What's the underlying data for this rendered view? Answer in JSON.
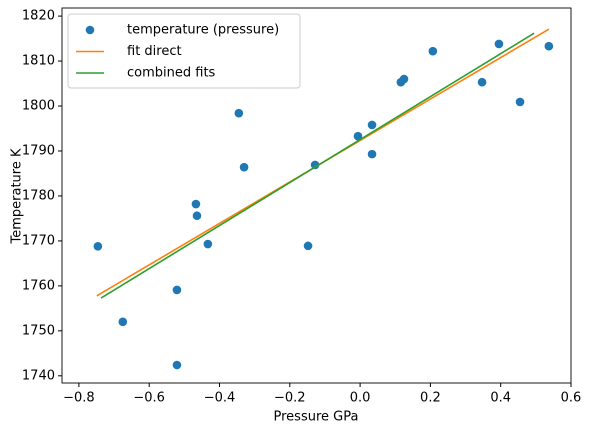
{
  "chart_data": {
    "type": "scatter",
    "xlabel": "Pressure GPa",
    "ylabel": "Temperature K",
    "xlim": [
      -0.848,
      0.6
    ],
    "ylim": [
      1738.4,
      1821.8
    ],
    "xticks": [
      {
        "value": -0.8,
        "label": "−0.8"
      },
      {
        "value": -0.6,
        "label": "−0.6"
      },
      {
        "value": -0.4,
        "label": "−0.4"
      },
      {
        "value": -0.2,
        "label": "−0.2"
      },
      {
        "value": 0,
        "label": "0.0"
      },
      0.2,
      0.4,
      0.6
    ],
    "yticks": [
      1740,
      1750,
      1760,
      1770,
      1780,
      1790,
      1800,
      1810,
      1820
    ],
    "legend": "upper left",
    "series": [
      {
        "name": "temperature (pressure)",
        "type": "scatter",
        "color": "#1f77b4",
        "x": [
          -0.746,
          -0.675,
          -0.521,
          -0.521,
          -0.467,
          -0.464,
          -0.433,
          -0.345,
          -0.33,
          -0.148,
          -0.128,
          -0.006,
          0.034,
          0.034,
          0.116,
          0.125,
          0.207,
          0.347,
          0.395,
          0.455,
          0.537
        ],
        "values": [
          1768.8,
          1752.0,
          1759.1,
          1742.4,
          1778.2,
          1775.6,
          1769.3,
          1798.4,
          1786.4,
          1768.9,
          1786.9,
          1793.3,
          1795.8,
          1789.3,
          1805.3,
          1806.0,
          1812.2,
          1805.3,
          1813.8,
          1800.9,
          1813.3
        ]
      },
      {
        "name": "fit direct",
        "type": "line",
        "color": "#ff7f0e",
        "x": [
          -0.749,
          0.537
        ],
        "values": [
          1757.8,
          1817.1
        ]
      },
      {
        "name": "combined fits",
        "type": "line",
        "color": "#2ca02c",
        "x": [
          -0.737,
          0.495
        ],
        "values": [
          1757.3,
          1816.2
        ]
      }
    ]
  }
}
